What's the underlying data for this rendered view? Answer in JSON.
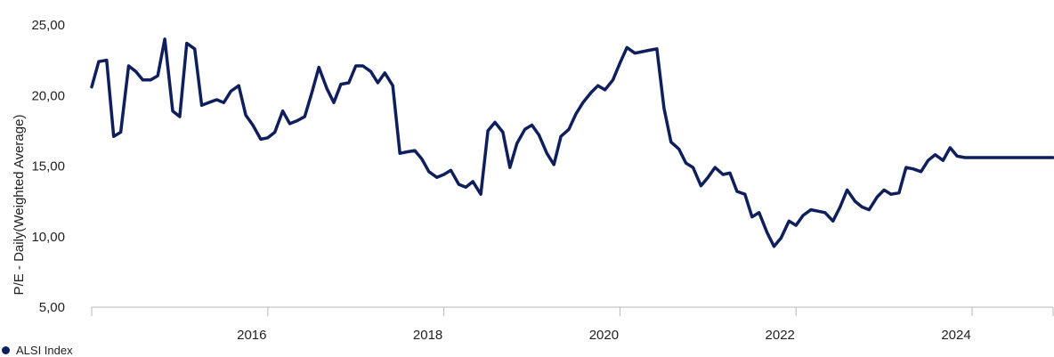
{
  "chart_data": {
    "type": "line",
    "ylabel": "P/E - Daily(Weighted Average)",
    "xlabel": "",
    "y_ticks": [
      "5,00",
      "10,00",
      "15,00",
      "20,00",
      "25,00"
    ],
    "y_tick_values": [
      5,
      10,
      15,
      20,
      25
    ],
    "ylim": [
      5,
      25
    ],
    "xlim": [
      2014.0,
      2024.92
    ],
    "x_ticks": [
      "2016",
      "2018",
      "2020",
      "2022",
      "2024"
    ],
    "x_tick_values": [
      2016,
      2018,
      2020,
      2022,
      2024
    ],
    "grid": false,
    "legend_position": "bottom-left",
    "series": [
      {
        "name": "ALSI Index",
        "color": "#0f1f5c",
        "x": [
          2014.0,
          2014.08,
          2014.17,
          2014.25,
          2014.33,
          2014.42,
          2014.5,
          2014.58,
          2014.67,
          2014.75,
          2014.83,
          2014.92,
          2015.0,
          2015.08,
          2015.17,
          2015.25,
          2015.33,
          2015.42,
          2015.5,
          2015.58,
          2015.67,
          2015.75,
          2015.83,
          2015.92,
          2016.0,
          2016.08,
          2016.17,
          2016.25,
          2016.33,
          2016.42,
          2016.5,
          2016.58,
          2016.67,
          2016.75,
          2016.83,
          2016.92,
          2017.0,
          2017.08,
          2017.17,
          2017.25,
          2017.33,
          2017.42,
          2017.5,
          2017.58,
          2017.67,
          2017.75,
          2017.83,
          2017.92,
          2018.0,
          2018.08,
          2018.17,
          2018.25,
          2018.33,
          2018.42,
          2018.5,
          2018.58,
          2018.67,
          2018.75,
          2018.83,
          2018.92,
          2019.0,
          2019.08,
          2019.17,
          2019.25,
          2019.33,
          2019.42,
          2019.5,
          2019.58,
          2019.67,
          2019.75,
          2019.83,
          2019.92,
          2020.0,
          2020.08,
          2020.17,
          2020.25,
          2020.33,
          2020.42,
          2020.5,
          2020.58,
          2020.67,
          2020.75,
          2020.83,
          2020.92,
          2021.0,
          2021.08,
          2021.17,
          2021.25,
          2021.33,
          2021.42,
          2021.5,
          2021.58,
          2021.67,
          2021.75,
          2021.83,
          2021.92,
          2022.0,
          2022.08,
          2022.17,
          2022.25,
          2022.33,
          2022.42,
          2022.5,
          2022.58,
          2022.67,
          2022.75,
          2022.83,
          2022.92,
          2023.0,
          2023.08,
          2023.17,
          2023.25,
          2023.33,
          2023.42,
          2023.5,
          2023.58,
          2023.67,
          2023.75,
          2023.83,
          2023.92,
          2024.0,
          2024.08,
          2024.17,
          2024.25,
          2024.33,
          2024.42,
          2024.5,
          2024.58,
          2024.67,
          2024.75,
          2024.83,
          2024.92
        ],
        "values": [
          20.6,
          22.4,
          22.5,
          17.1,
          17.4,
          22.1,
          21.7,
          21.1,
          21.1,
          21.4,
          24.0,
          18.9,
          18.5,
          23.7,
          23.3,
          19.3,
          19.5,
          19.7,
          19.5,
          20.3,
          20.7,
          18.6,
          17.9,
          16.9,
          17.0,
          17.4,
          18.9,
          18.0,
          18.2,
          18.5,
          20.2,
          22.0,
          20.5,
          19.5,
          20.8,
          20.9,
          22.1,
          22.1,
          21.7,
          20.9,
          21.6,
          20.7,
          15.9,
          16.0,
          16.1,
          15.5,
          14.6,
          14.2,
          14.4,
          14.7,
          13.7,
          13.5,
          13.9,
          13.0,
          17.5,
          18.1,
          17.4,
          14.9,
          16.6,
          17.6,
          17.9,
          17.2,
          15.9,
          15.1,
          17.1,
          17.6,
          18.7,
          19.5,
          20.2,
          20.7,
          20.4,
          21.1,
          22.3,
          23.4,
          23.0,
          23.1,
          23.2,
          23.3,
          19.1,
          16.7,
          16.2,
          15.2,
          14.9,
          13.6,
          14.2,
          14.9,
          14.4,
          14.5,
          13.2,
          13.0,
          11.4,
          11.7,
          10.3,
          9.3,
          9.9,
          11.1,
          10.8,
          11.5,
          11.9,
          11.8,
          11.7,
          11.1,
          12.1,
          13.3,
          12.5,
          12.1,
          11.9,
          12.8,
          13.3,
          13.0,
          13.1,
          14.9,
          14.8,
          14.6,
          15.4,
          15.8,
          15.4,
          16.3,
          15.7,
          15.6,
          15.6,
          15.6,
          15.6,
          15.6,
          15.6,
          15.6,
          15.6,
          15.6,
          15.6,
          15.6,
          15.6,
          15.6
        ]
      }
    ]
  }
}
